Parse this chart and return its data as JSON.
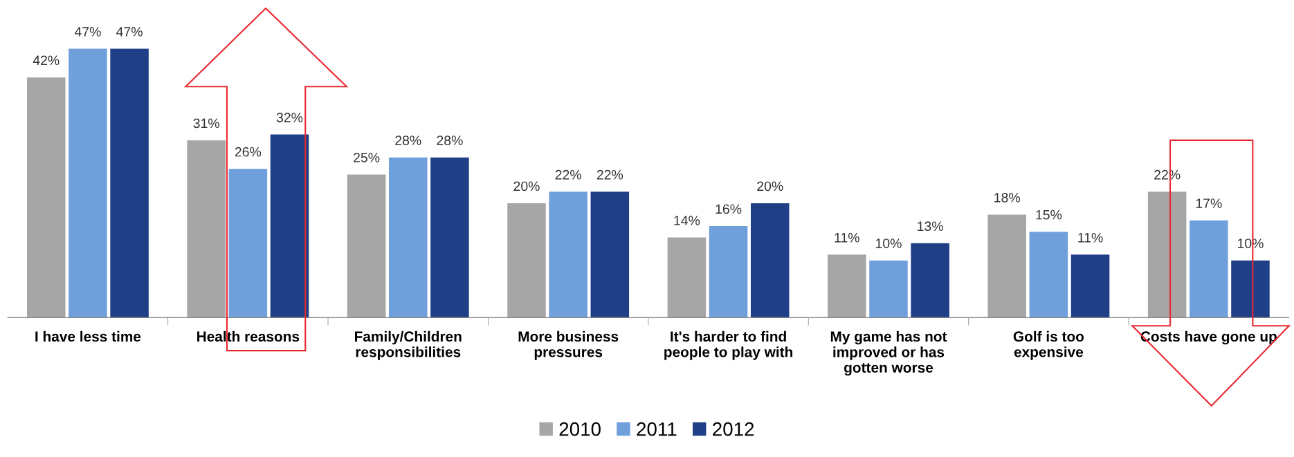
{
  "chart_data": {
    "type": "bar",
    "categories": [
      "I have less time",
      "Health reasons",
      "Family/Children\nresponsibilities",
      "More business\npressures",
      "It's harder to find\npeople to play with",
      "My game has not\nimproved or has\ngotten worse",
      "Golf is too\nexpensive",
      "Costs have gone up"
    ],
    "series": [
      {
        "name": "2010",
        "color": "#a6a6a6",
        "values": [
          42,
          31,
          25,
          20,
          14,
          11,
          18,
          22
        ],
        "value_labels": [
          "42%",
          "31%",
          "25%",
          "20%",
          "14%",
          "11%",
          "18%",
          "22%"
        ]
      },
      {
        "name": "2011",
        "color": "#6fa0dc",
        "values": [
          47,
          26,
          28,
          22,
          16,
          10,
          15,
          17
        ],
        "value_labels": [
          "47%",
          "26%",
          "28%",
          "22%",
          "16%",
          "10%",
          "15%",
          "17%"
        ]
      },
      {
        "name": "2012",
        "color": "#1f3f86",
        "values": [
          47,
          32,
          28,
          22,
          20,
          13,
          11,
          10
        ],
        "value_labels": [
          "47%",
          "32%",
          "28%",
          "22%",
          "20%",
          "13%",
          "11%",
          "10%"
        ]
      }
    ],
    "legend": "bottom",
    "grid": false
  }
}
